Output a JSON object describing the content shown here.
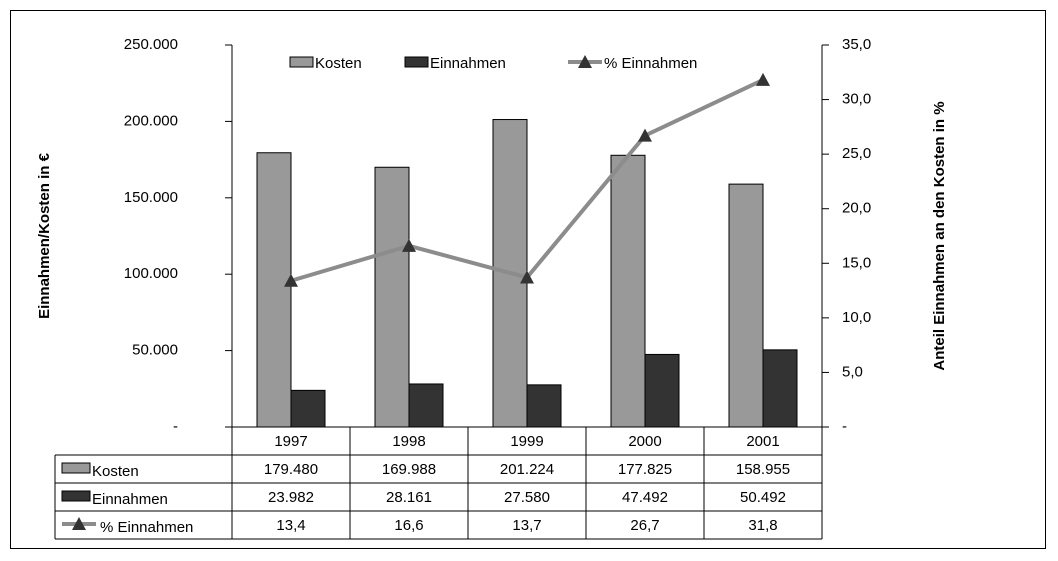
{
  "chart_data": {
    "type": "bar",
    "categories": [
      "1997",
      "1998",
      "1999",
      "2000",
      "2001"
    ],
    "series": [
      {
        "name": "Kosten",
        "type": "bar",
        "color": "#999999",
        "values": [
          179480,
          169988,
          201224,
          177825,
          158955
        ],
        "value_labels": [
          "179.480",
          "169.988",
          "201.224",
          "177.825",
          "158.955"
        ]
      },
      {
        "name": "Einnahmen",
        "type": "bar",
        "color": "#333333",
        "values": [
          23982,
          28161,
          27580,
          47492,
          50492
        ],
        "value_labels": [
          "23.982",
          "28.161",
          "27.580",
          "47.492",
          "50.492"
        ]
      },
      {
        "name": "% Einnahmen",
        "type": "line",
        "axis": "y2",
        "color": "#8c8c8c",
        "marker_color": "#333333",
        "values": [
          13.4,
          16.6,
          13.7,
          26.7,
          31.8
        ],
        "value_labels": [
          "13,4",
          "16,6",
          "13,7",
          "26,7",
          "31,8"
        ]
      }
    ],
    "y_label": "Einnahmen/Kosten in €",
    "y2_label": "Anteil Einnahmen an den Kosten in %",
    "ylim": [
      0,
      250000
    ],
    "yticks": [
      {
        "value": 0,
        "label": "-"
      },
      {
        "value": 50000,
        "label": "50.000"
      },
      {
        "value": 100000,
        "label": "100.000"
      },
      {
        "value": 150000,
        "label": "150.000"
      },
      {
        "value": 200000,
        "label": "200.000"
      },
      {
        "value": 250000,
        "label": "250.000"
      }
    ],
    "y2lim": [
      0,
      35
    ],
    "y2ticks": [
      {
        "value": 0,
        "label": "-"
      },
      {
        "value": 5,
        "label": "5,0"
      },
      {
        "value": 10,
        "label": "10,0"
      },
      {
        "value": 15,
        "label": "15,0"
      },
      {
        "value": 20,
        "label": "20,0"
      },
      {
        "value": 25,
        "label": "25,0"
      },
      {
        "value": 30,
        "label": "30,0"
      },
      {
        "value": 35,
        "label": "35,0"
      }
    ],
    "legend": "top"
  }
}
